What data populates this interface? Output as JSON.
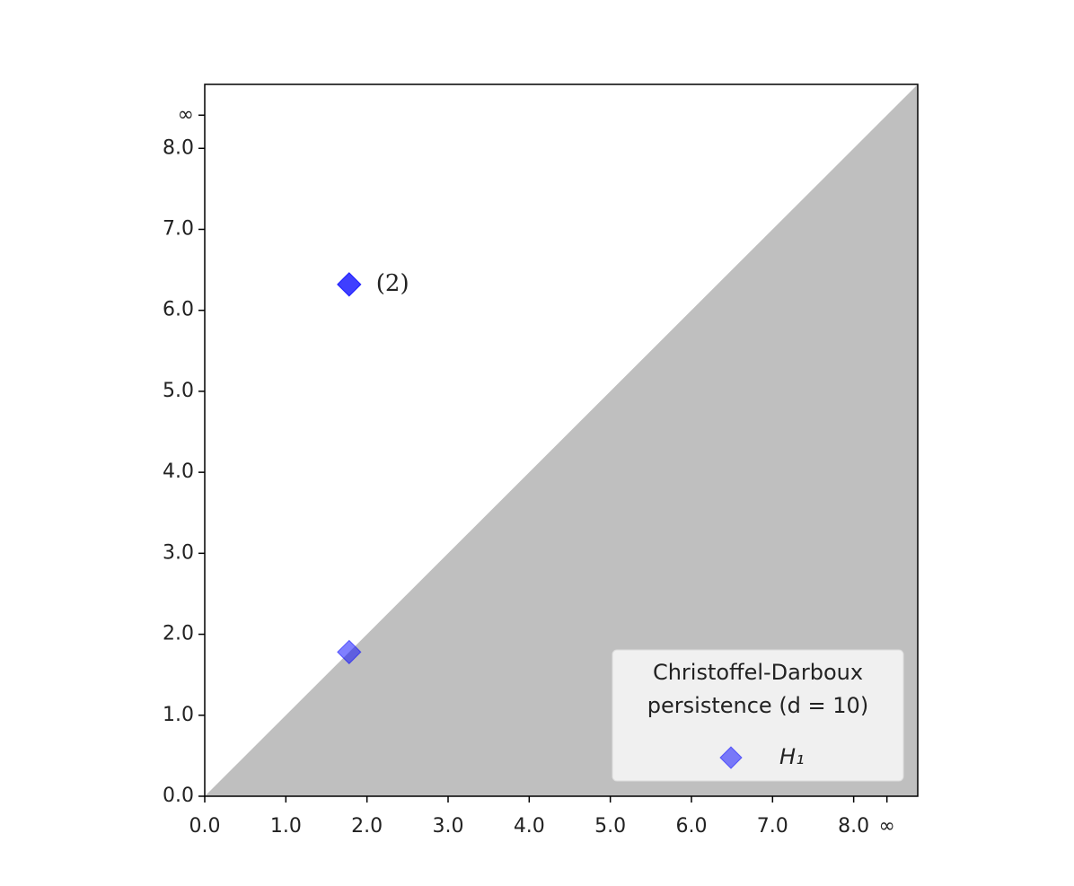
{
  "chart_data": {
    "type": "scatter",
    "xlim": [
      0,
      8.79
    ],
    "ylim": [
      0,
      8.79
    ],
    "xticks": [
      {
        "value": 0,
        "label": "0.0"
      },
      {
        "value": 1,
        "label": "1.0"
      },
      {
        "value": 2,
        "label": "2.0"
      },
      {
        "value": 3,
        "label": "3.0"
      },
      {
        "value": 4,
        "label": "4.0"
      },
      {
        "value": 5,
        "label": "5.0"
      },
      {
        "value": 6,
        "label": "6.0"
      },
      {
        "value": 7,
        "label": "7.0"
      },
      {
        "value": 8,
        "label": "8.0"
      },
      {
        "value": 8.41,
        "label": "∞"
      }
    ],
    "yticks": [
      {
        "value": 0,
        "label": "0.0"
      },
      {
        "value": 1,
        "label": "1.0"
      },
      {
        "value": 2,
        "label": "2.0"
      },
      {
        "value": 3,
        "label": "3.0"
      },
      {
        "value": 4,
        "label": "4.0"
      },
      {
        "value": 5,
        "label": "5.0"
      },
      {
        "value": 6,
        "label": "6.0"
      },
      {
        "value": 7,
        "label": "7.0"
      },
      {
        "value": 8,
        "label": "8.0"
      },
      {
        "value": 8.41,
        "label": "∞"
      }
    ],
    "series": [
      {
        "name": "H₁",
        "color": "#0000ff",
        "opacity": 0.5,
        "x": [
          1.78,
          1.78,
          1.78
        ],
        "values": [
          6.32,
          6.32,
          1.78
        ]
      }
    ],
    "annotations": [
      {
        "text": "(2)",
        "x": 1.78,
        "y": 6.32
      }
    ],
    "legend_title": [
      "Christoffel-Darboux",
      "persistence (d = 10)"
    ],
    "legend": "lower right"
  }
}
